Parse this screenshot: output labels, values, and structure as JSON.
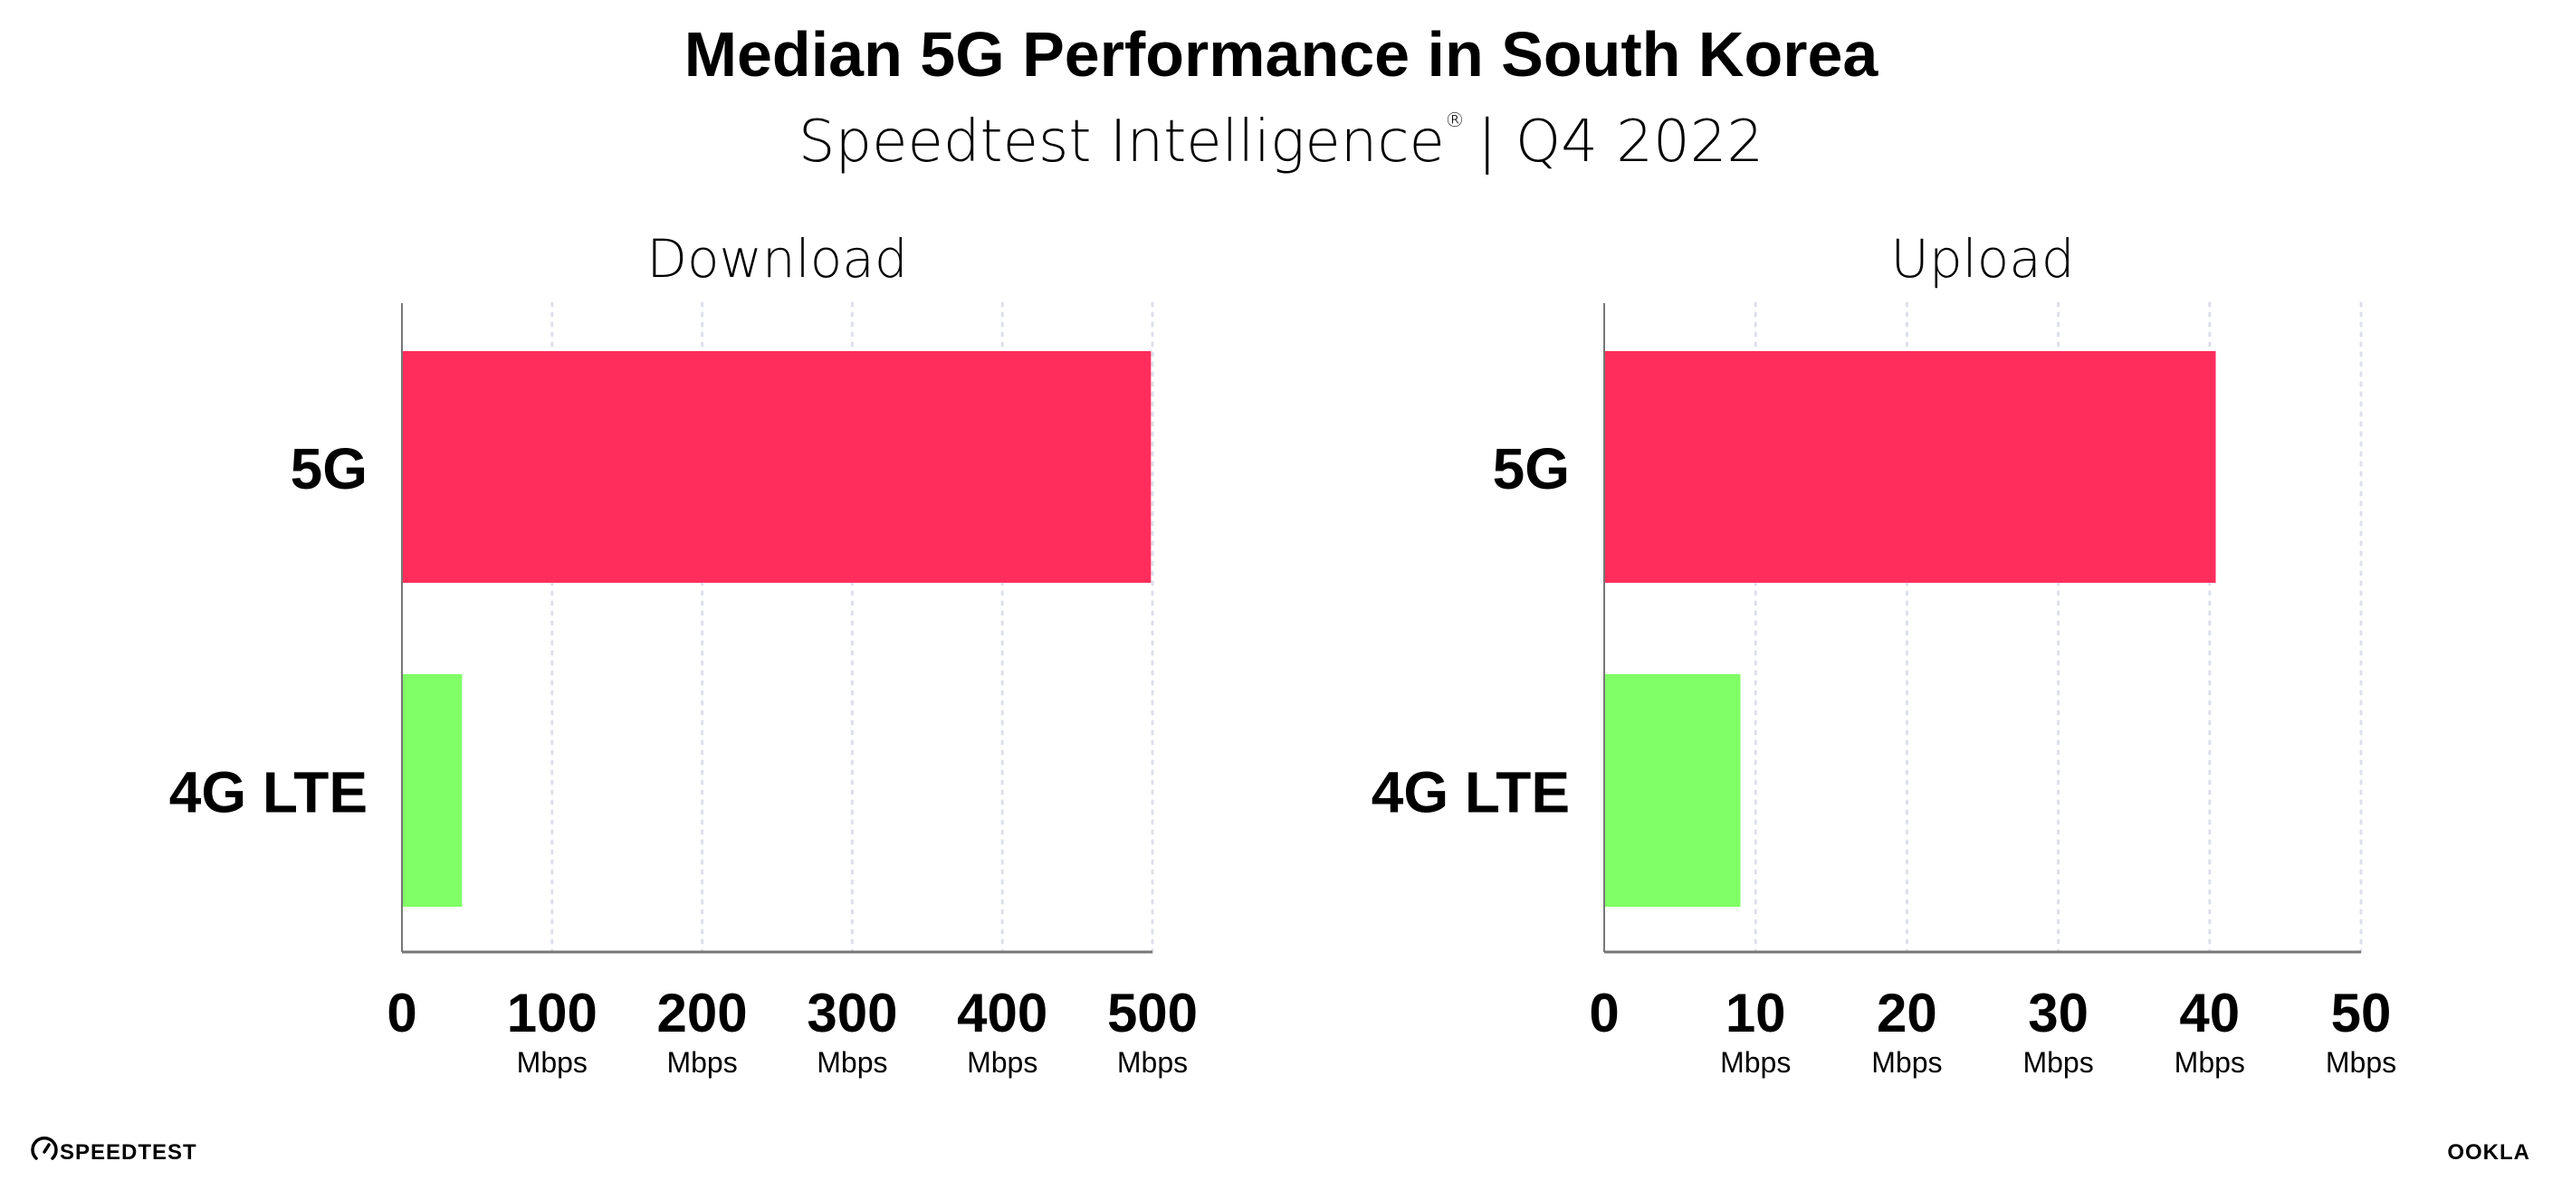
{
  "header": {
    "title": "Median 5G Performance in South Korea",
    "subtitle": "Speedtest Intelligence",
    "subtitle_mark": "®",
    "subtitle_period": "| Q4 2022"
  },
  "colors": {
    "5G": "#ff2d5c",
    "4G LTE": "#80ff66",
    "axis": "#777777",
    "grid": "#dde0ea"
  },
  "chart_data": [
    {
      "type": "bar",
      "orientation": "horizontal",
      "title": "Download",
      "categories": [
        "5G",
        "4G LTE"
      ],
      "values": [
        499,
        40
      ],
      "xlim": [
        0,
        500
      ],
      "ticks": [
        "0",
        "100",
        "200",
        "300",
        "400",
        "500"
      ],
      "tick_units": [
        "",
        "Mbps",
        "Mbps",
        "Mbps",
        "Mbps",
        "Mbps"
      ],
      "grid": true
    },
    {
      "type": "bar",
      "orientation": "horizontal",
      "title": "Upload",
      "categories": [
        "5G",
        "4G LTE"
      ],
      "values": [
        40.4,
        9.0
      ],
      "xlim": [
        0,
        50
      ],
      "ticks": [
        "0",
        "10",
        "20",
        "30",
        "40",
        "50"
      ],
      "tick_units": [
        "",
        "Mbps",
        "Mbps",
        "Mbps",
        "Mbps",
        "Mbps"
      ],
      "grid": true
    }
  ],
  "footer": {
    "left_logo": "SPEEDTEST",
    "right_logo": "OOKLA"
  }
}
